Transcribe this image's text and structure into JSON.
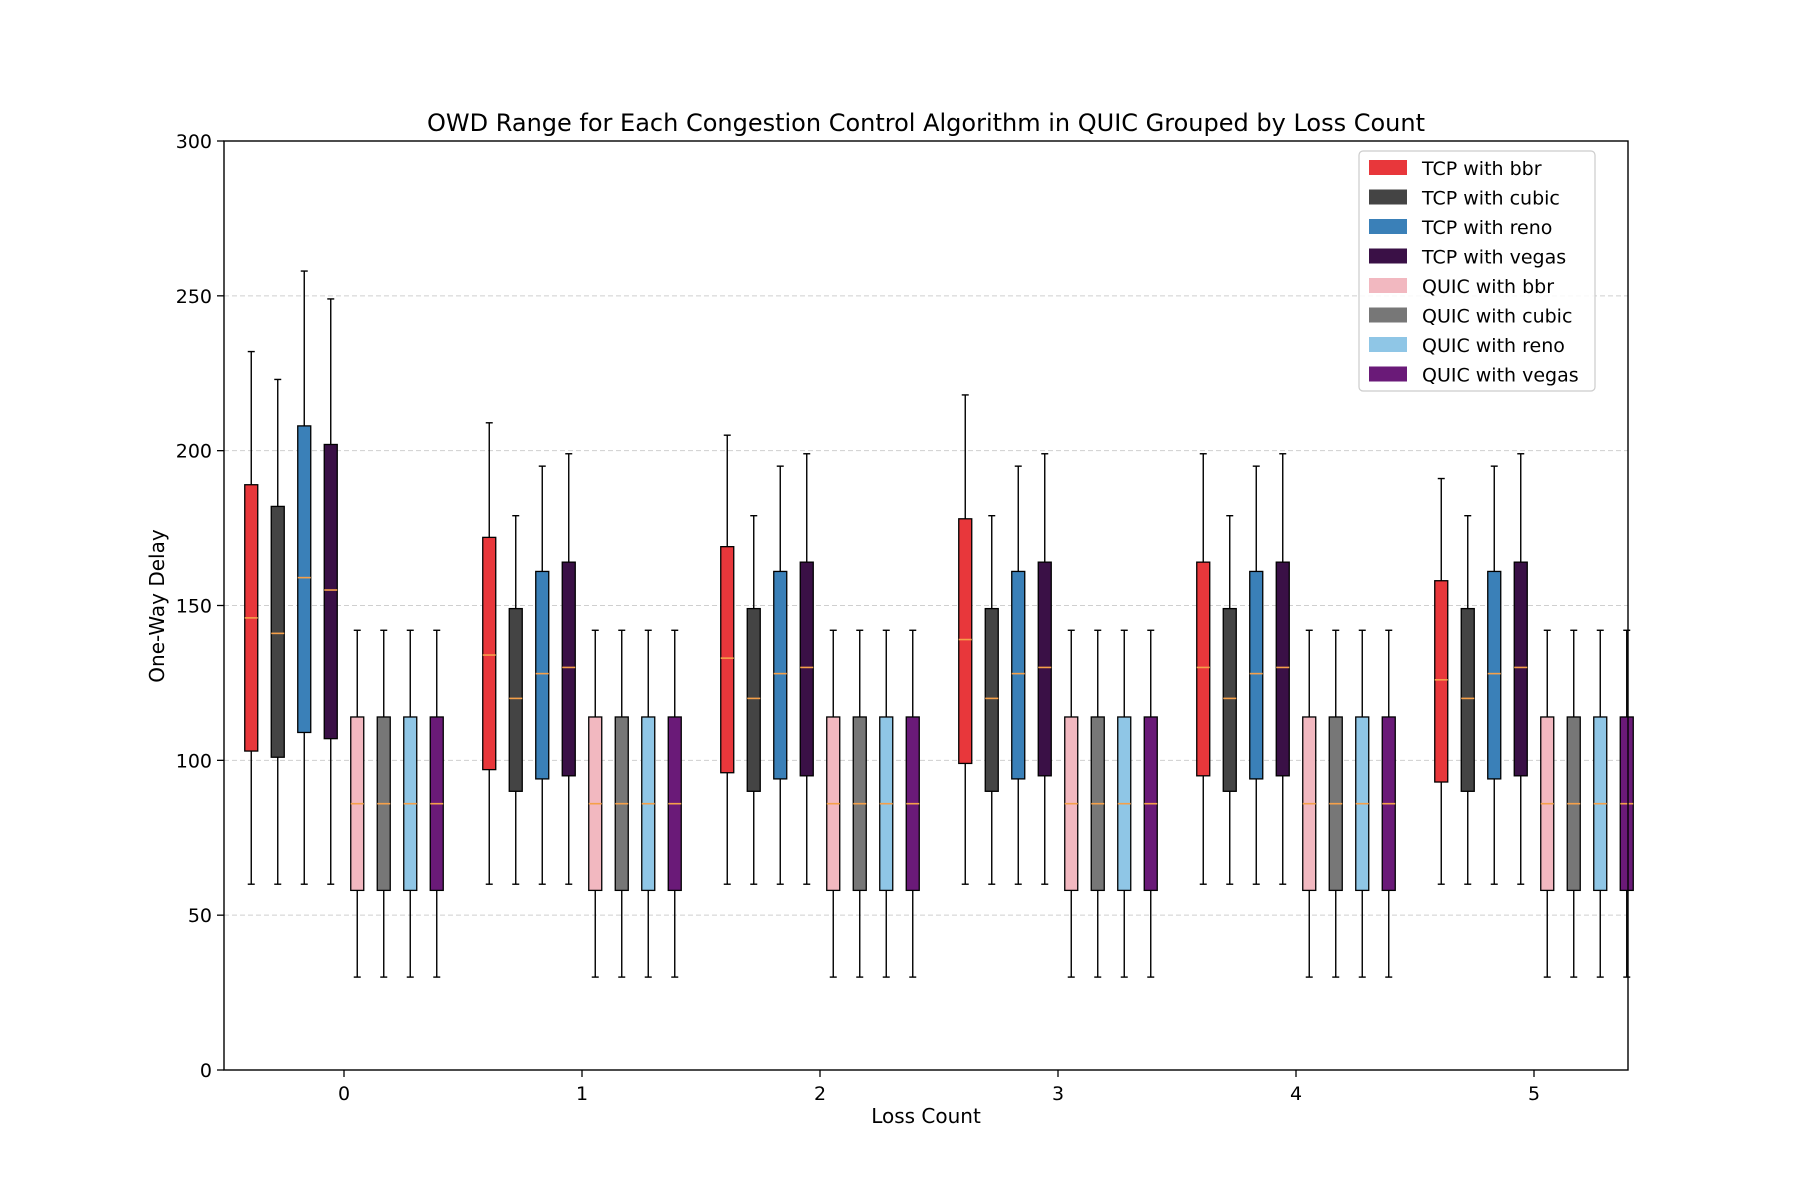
{
  "chart_data": {
    "type": "boxplot",
    "title": "OWD Range for Each Congestion Control Algorithm in QUIC Grouped by Loss Count",
    "xlabel": "Loss Count",
    "ylabel": "One-Way Delay",
    "ylim": [
      0,
      300
    ],
    "yticks": [
      0,
      50,
      100,
      150,
      200,
      250,
      300
    ],
    "categories": [
      "0",
      "1",
      "2",
      "3",
      "4",
      "5"
    ],
    "grid": "horizontal dashed",
    "legend_position": "top-right",
    "median_color": "#f5a04a",
    "series": [
      {
        "name": "TCP with bbr",
        "color": "#e8373b",
        "boxes": [
          {
            "min": 60,
            "q1": 103,
            "median": 146,
            "q3": 189,
            "max": 232
          },
          {
            "min": 60,
            "q1": 97,
            "median": 134,
            "q3": 172,
            "max": 209
          },
          {
            "min": 60,
            "q1": 96,
            "median": 133,
            "q3": 169,
            "max": 205
          },
          {
            "min": 60,
            "q1": 99,
            "median": 139,
            "q3": 178,
            "max": 218
          },
          {
            "min": 60,
            "q1": 95,
            "median": 130,
            "q3": 164,
            "max": 199
          },
          {
            "min": 60,
            "q1": 93,
            "median": 126,
            "q3": 158,
            "max": 191
          }
        ]
      },
      {
        "name": "TCP with cubic",
        "color": "#444444",
        "boxes": [
          {
            "min": 60,
            "q1": 101,
            "median": 141,
            "q3": 182,
            "max": 223
          },
          {
            "min": 60,
            "q1": 90,
            "median": 120,
            "q3": 149,
            "max": 179
          },
          {
            "min": 60,
            "q1": 90,
            "median": 120,
            "q3": 149,
            "max": 179
          },
          {
            "min": 60,
            "q1": 90,
            "median": 120,
            "q3": 149,
            "max": 179
          },
          {
            "min": 60,
            "q1": 90,
            "median": 120,
            "q3": 149,
            "max": 179
          },
          {
            "min": 60,
            "q1": 90,
            "median": 120,
            "q3": 149,
            "max": 179
          }
        ]
      },
      {
        "name": "TCP with reno",
        "color": "#3a80b8",
        "boxes": [
          {
            "min": 60,
            "q1": 109,
            "median": 159,
            "q3": 208,
            "max": 258
          },
          {
            "min": 60,
            "q1": 94,
            "median": 128,
            "q3": 161,
            "max": 195
          },
          {
            "min": 60,
            "q1": 94,
            "median": 128,
            "q3": 161,
            "max": 195
          },
          {
            "min": 60,
            "q1": 94,
            "median": 128,
            "q3": 161,
            "max": 195
          },
          {
            "min": 60,
            "q1": 94,
            "median": 128,
            "q3": 161,
            "max": 195
          },
          {
            "min": 60,
            "q1": 94,
            "median": 128,
            "q3": 161,
            "max": 195
          }
        ]
      },
      {
        "name": "TCP with vegas",
        "color": "#3a1046",
        "boxes": [
          {
            "min": 60,
            "q1": 107,
            "median": 155,
            "q3": 202,
            "max": 249
          },
          {
            "min": 60,
            "q1": 95,
            "median": 130,
            "q3": 164,
            "max": 199
          },
          {
            "min": 60,
            "q1": 95,
            "median": 130,
            "q3": 164,
            "max": 199
          },
          {
            "min": 60,
            "q1": 95,
            "median": 130,
            "q3": 164,
            "max": 199
          },
          {
            "min": 60,
            "q1": 95,
            "median": 130,
            "q3": 164,
            "max": 199
          },
          {
            "min": 60,
            "q1": 95,
            "median": 130,
            "q3": 164,
            "max": 199
          }
        ]
      },
      {
        "name": "QUIC with bbr",
        "color": "#f2b8c0",
        "boxes": [
          {
            "min": 30,
            "q1": 58,
            "median": 86,
            "q3": 114,
            "max": 142
          },
          {
            "min": 30,
            "q1": 58,
            "median": 86,
            "q3": 114,
            "max": 142
          },
          {
            "min": 30,
            "q1": 58,
            "median": 86,
            "q3": 114,
            "max": 142
          },
          {
            "min": 30,
            "q1": 58,
            "median": 86,
            "q3": 114,
            "max": 142
          },
          {
            "min": 30,
            "q1": 58,
            "median": 86,
            "q3": 114,
            "max": 142
          },
          {
            "min": 30,
            "q1": 58,
            "median": 86,
            "q3": 114,
            "max": 142
          }
        ]
      },
      {
        "name": "QUIC with cubic",
        "color": "#777777",
        "boxes": [
          {
            "min": 30,
            "q1": 58,
            "median": 86,
            "q3": 114,
            "max": 142
          },
          {
            "min": 30,
            "q1": 58,
            "median": 86,
            "q3": 114,
            "max": 142
          },
          {
            "min": 30,
            "q1": 58,
            "median": 86,
            "q3": 114,
            "max": 142
          },
          {
            "min": 30,
            "q1": 58,
            "median": 86,
            "q3": 114,
            "max": 142
          },
          {
            "min": 30,
            "q1": 58,
            "median": 86,
            "q3": 114,
            "max": 142
          },
          {
            "min": 30,
            "q1": 58,
            "median": 86,
            "q3": 114,
            "max": 142
          }
        ]
      },
      {
        "name": "QUIC with reno",
        "color": "#8fc6e6",
        "boxes": [
          {
            "min": 30,
            "q1": 58,
            "median": 86,
            "q3": 114,
            "max": 142
          },
          {
            "min": 30,
            "q1": 58,
            "median": 86,
            "q3": 114,
            "max": 142
          },
          {
            "min": 30,
            "q1": 58,
            "median": 86,
            "q3": 114,
            "max": 142
          },
          {
            "min": 30,
            "q1": 58,
            "median": 86,
            "q3": 114,
            "max": 142
          },
          {
            "min": 30,
            "q1": 58,
            "median": 86,
            "q3": 114,
            "max": 142
          },
          {
            "min": 30,
            "q1": 58,
            "median": 86,
            "q3": 114,
            "max": 142
          }
        ]
      },
      {
        "name": "QUIC with vegas",
        "color": "#6a1a78",
        "boxes": [
          {
            "min": 30,
            "q1": 58,
            "median": 86,
            "q3": 114,
            "max": 142
          },
          {
            "min": 30,
            "q1": 58,
            "median": 86,
            "q3": 114,
            "max": 142
          },
          {
            "min": 30,
            "q1": 58,
            "median": 86,
            "q3": 114,
            "max": 142
          },
          {
            "min": 30,
            "q1": 58,
            "median": 86,
            "q3": 114,
            "max": 142
          },
          {
            "min": 30,
            "q1": 58,
            "median": 86,
            "q3": 114,
            "max": 142
          },
          {
            "min": 30,
            "q1": 58,
            "median": 86,
            "q3": 114,
            "max": 142
          }
        ]
      }
    ]
  }
}
